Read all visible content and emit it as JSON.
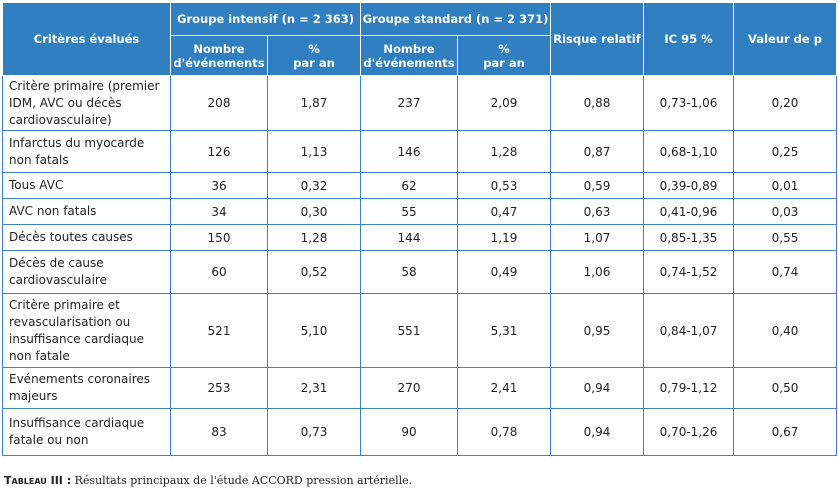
{
  "table": {
    "header": {
      "criteria": "Critères évalués",
      "groups": [
        "Groupe intensif (n = 2 363)",
        "Groupe standard (n = 2 371)"
      ],
      "subheaders": [
        "Nombre\nd'événements",
        "%\npar an",
        "Nombre\nd'événements",
        "%\npar an"
      ],
      "risk": "Risque relatif",
      "ci": "IC 95 %",
      "p": "Valeur de p"
    },
    "rows": [
      [
        "Critère primaire (premier IDM, AVC ou décès cardiovasculaire)",
        "208",
        "1,87",
        "237",
        "2,09",
        "0,88",
        "0,73-1,06",
        "0,20"
      ],
      [
        "Infarctus du myocarde non fatals",
        "126",
        "1,13",
        "146",
        "1,28",
        "0,87",
        "0,68-1,10",
        "0,25"
      ],
      [
        "Tous AVC",
        "36",
        "0,32",
        "62",
        "0,53",
        "0,59",
        "0,39-0,89",
        "0,01"
      ],
      [
        "AVC non fatals",
        "34",
        "0,30",
        "55",
        "0,47",
        "0,63",
        "0,41-0,96",
        "0,03"
      ],
      [
        "Décès toutes causes",
        "150",
        "1,28",
        "144",
        "1,19",
        "1,07",
        "0,85-1,35",
        "0,55"
      ],
      [
        "Décès de cause cardiovasculaire",
        "60",
        "0,52",
        "58",
        "0,49",
        "1,06",
        "0,74-1,52",
        "0,74"
      ],
      [
        "Critère primaire et revascularisation ou insuffisance cardiaque non fatale",
        "521",
        "5,10",
        "551",
        "5,31",
        "0,95",
        "0,84-1,07",
        "0,40"
      ],
      [
        "Evénements coronaires majeurs",
        "253",
        "2,31",
        "270",
        "2,41",
        "0,94",
        "0,79-1,12",
        "0,50"
      ],
      [
        "Insuffisance cardiaque fatale ou non",
        "83",
        "0,73",
        "90",
        "0,78",
        "0,94",
        "0,70-1,26",
        "0,67"
      ]
    ]
  },
  "caption": {
    "label": "Tableau III :",
    "text": "Résultats principaux de l'étude ACCORD pression artérielle."
  }
}
